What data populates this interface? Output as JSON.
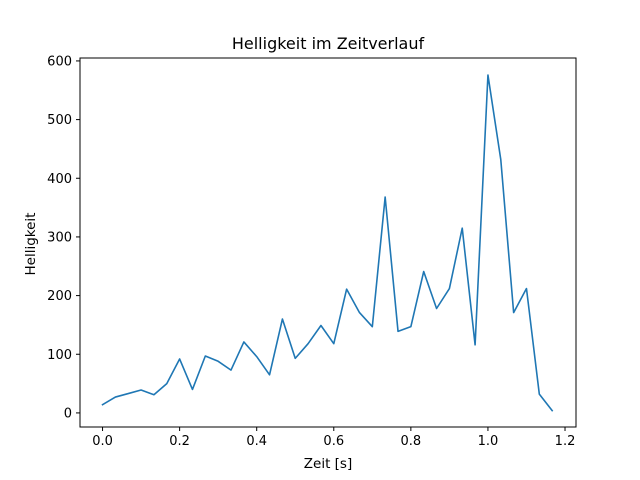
{
  "chart_data": {
    "type": "line",
    "title": "Helligkeit im Zeitverlauf",
    "xlabel": "Zeit [s]",
    "ylabel": "Helligkeit",
    "xlim": [
      -0.0585,
      1.2285
    ],
    "ylim": [
      -24,
      605
    ],
    "xticks": [
      0.0,
      0.2,
      0.4,
      0.6,
      0.8,
      1.0,
      1.2
    ],
    "xtick_labels": [
      "0.0",
      "0.2",
      "0.4",
      "0.6",
      "0.8",
      "1.0",
      "1.2"
    ],
    "yticks": [
      0,
      100,
      200,
      300,
      400,
      500,
      600
    ],
    "ytick_labels": [
      "0",
      "100",
      "200",
      "300",
      "400",
      "500",
      "600"
    ],
    "grid": false,
    "series": [
      {
        "color": "#1f77b4",
        "x": [
          0.0,
          0.0333,
          0.0667,
          0.1,
          0.1333,
          0.1667,
          0.2,
          0.2333,
          0.2667,
          0.3,
          0.3333,
          0.3667,
          0.4,
          0.4333,
          0.4667,
          0.5,
          0.5333,
          0.5667,
          0.6,
          0.6333,
          0.6667,
          0.7,
          0.7333,
          0.7667,
          0.8,
          0.8333,
          0.8667,
          0.9,
          0.9333,
          0.9667,
          1.0,
          1.0333,
          1.0667,
          1.1,
          1.1333,
          1.1667
        ],
        "y": [
          14,
          27,
          33,
          39,
          31,
          50,
          92,
          40,
          97,
          88,
          73,
          121,
          96,
          65,
          160,
          93,
          118,
          149,
          118,
          211,
          171,
          147,
          368,
          139,
          147,
          241,
          178,
          212,
          315,
          116,
          576,
          432,
          171,
          212,
          32,
          4
        ]
      }
    ]
  }
}
